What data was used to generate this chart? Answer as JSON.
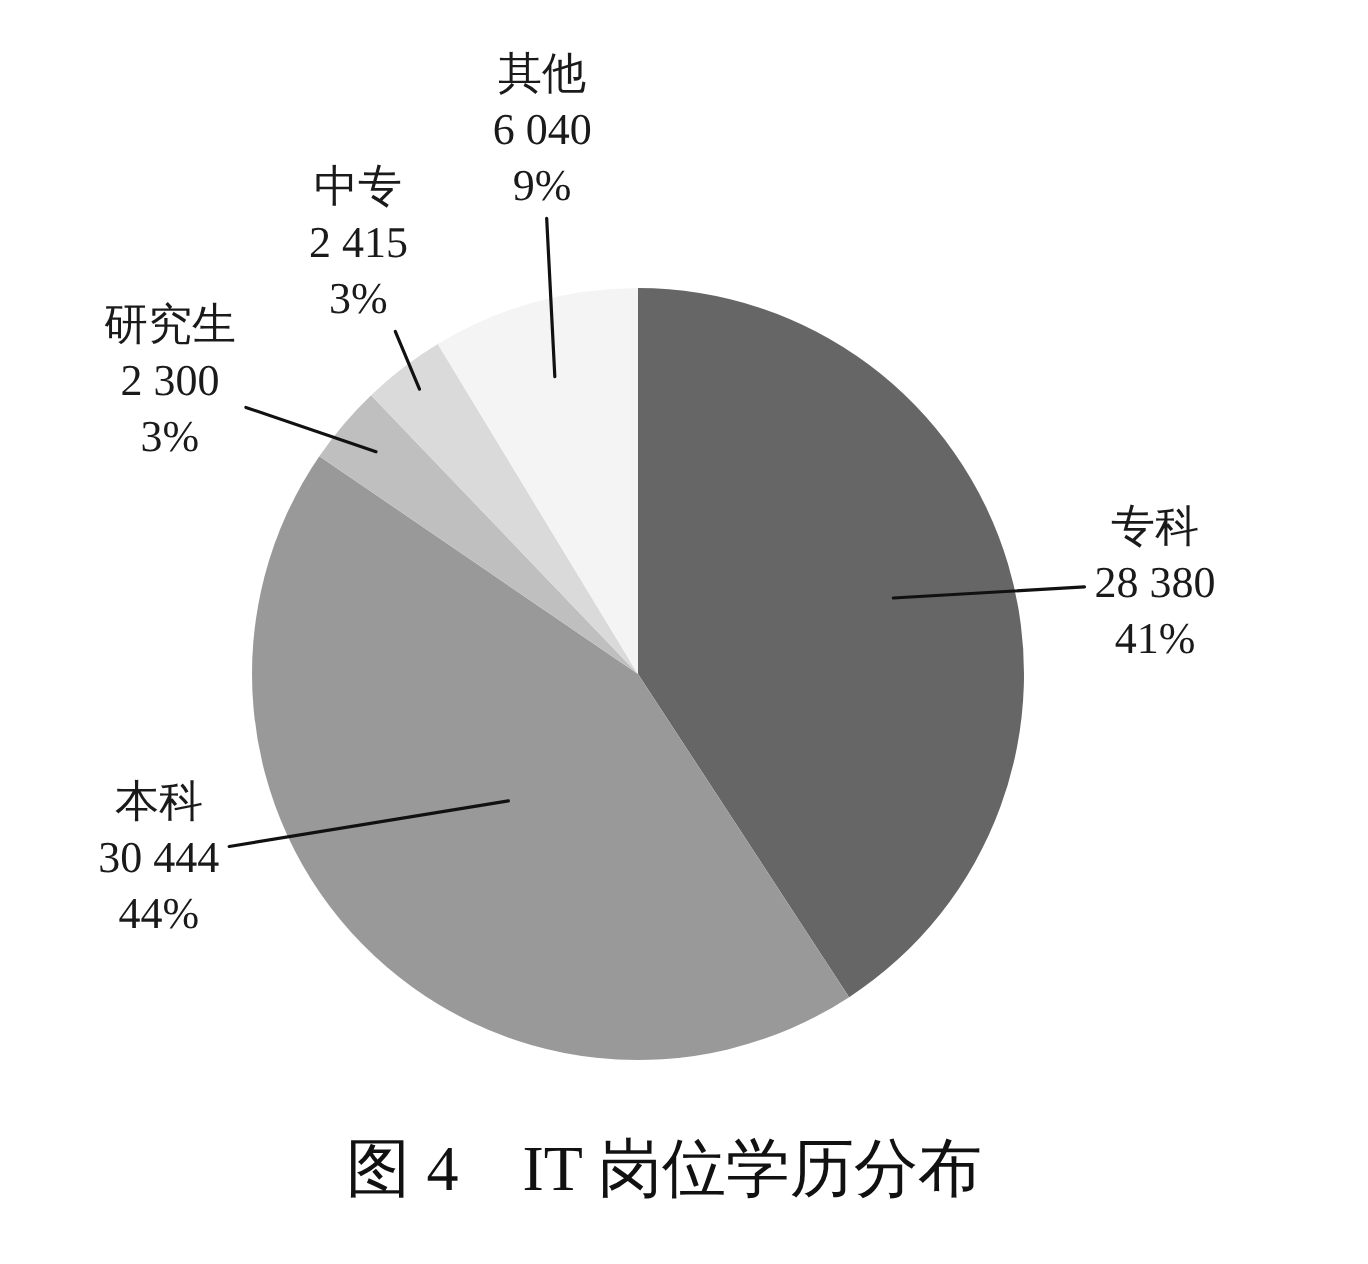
{
  "chart_data": {
    "type": "pie",
    "title": "图 4　IT 岗位学历分布",
    "categories": [
      "专科",
      "本科",
      "研究生",
      "中专",
      "其他"
    ],
    "values": [
      28380,
      30444,
      2300,
      2415,
      6040
    ],
    "colors": [
      "#666666",
      "#999999",
      "#bfbfbf",
      "#dadada",
      "#f4f4f4"
    ],
    "value_labels": [
      "28 380\n41%",
      "30 444\n44%",
      "2 300\n3%",
      "2 415\n3%",
      "6 040\n9%"
    ]
  }
}
